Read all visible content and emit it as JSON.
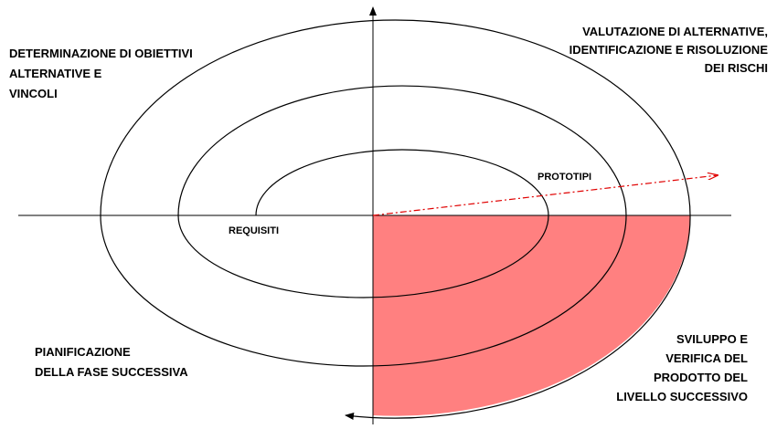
{
  "quadrants": {
    "top_left": [
      "DETERMINAZIONE DI OBIETTIVI",
      "ALTERNATIVE E",
      "VINCOLI"
    ],
    "top_right": [
      "VALUTAZIONE DI ALTERNATIVE,",
      "IDENTIFICAZIONE E RISOLUZIONE",
      "DEI RISCHI"
    ],
    "bottom_left": [
      "PIANIFICAZIONE",
      "DELLA FASE SUCCESSIVA"
    ],
    "bottom_right": [
      "SVILUPPO E",
      "VERIFICA DEL",
      "PRODOTTO DEL",
      "LIVELLO SUCCESSIVO"
    ]
  },
  "labels": {
    "prototypes": "PROTOTIPI",
    "requirements": "REQUISITI"
  }
}
